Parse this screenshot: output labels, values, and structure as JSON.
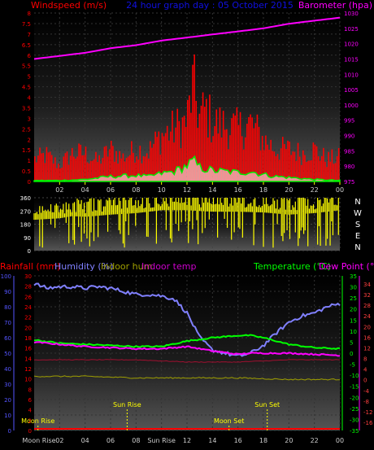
{
  "colors": {
    "windspeed": "#ff0000",
    "barometer": "#ff00ff",
    "title": "#1010e0",
    "direction": "#ffff00",
    "humidity": "#8080ff",
    "rainfall_axis": "#5555ff",
    "temperature": "#00ff00",
    "dewpoint": "#ff00ff",
    "indoor_hum": "#a0a000",
    "indoor_temp": "#cc00cc",
    "event": "#ffff00",
    "tick": "#ffff00"
  },
  "chart_data": [
    {
      "type": "bar",
      "title": "24 hour graph day : 05 October 2015",
      "ylabel": "Windspeed (m/s)",
      "y2label": "Barometer (hpa)",
      "ylim": [
        0,
        8
      ],
      "y2lim": [
        975,
        1030
      ],
      "y_ticks": [
        "0",
        "0.5",
        "1",
        "1.5",
        "2",
        "2.5",
        "3",
        "3.5",
        "4",
        "4.5",
        "5",
        "5.5",
        "6",
        "6.5",
        "7",
        "7.5",
        "8"
      ],
      "y2_ticks": [
        "975",
        "980",
        "985",
        "990",
        "995",
        "1000",
        "1005",
        "1010",
        "1015",
        "1020",
        "1025",
        "1030"
      ],
      "x_ticks": [
        "02",
        "04",
        "06",
        "08",
        "10",
        "12",
        "14",
        "16",
        "18",
        "20",
        "22",
        "00"
      ],
      "series": [
        {
          "name": "Gust",
          "x": [
            0,
            1,
            2,
            3,
            4,
            5,
            6,
            7,
            8,
            9,
            10,
            11,
            12,
            12.5,
            13,
            13.5,
            14,
            15,
            16,
            17,
            18,
            19,
            20,
            21,
            22,
            23,
            24
          ],
          "values": [
            1.1,
            1.3,
            0.8,
            1.4,
            1.4,
            1.0,
            1.6,
            1.2,
            1.6,
            1.5,
            2.3,
            2.6,
            3.0,
            4.8,
            3.2,
            3.6,
            2.9,
            2.8,
            2.6,
            2.9,
            2.1,
            1.6,
            1.6,
            1.4,
            1.6,
            1.1,
            1.2
          ]
        },
        {
          "name": "Average",
          "x": [
            0,
            2,
            4,
            6,
            8,
            9,
            10,
            11,
            12,
            12.5,
            13,
            14,
            15,
            16,
            17,
            18,
            19,
            20,
            22,
            24
          ],
          "values": [
            0.05,
            0.05,
            0.1,
            0.25,
            0.3,
            0.25,
            0.4,
            0.5,
            0.8,
            1.0,
            0.7,
            0.55,
            0.5,
            0.45,
            0.5,
            0.35,
            0.25,
            0.2,
            0.1,
            0.05
          ]
        },
        {
          "name": "Barometer",
          "x": [
            0,
            2,
            4,
            6,
            8,
            10,
            12,
            14,
            16,
            18,
            20,
            22,
            24
          ],
          "values": [
            1015,
            1016,
            1017,
            1018.5,
            1019.5,
            1021,
            1022,
            1023,
            1024,
            1025,
            1026.5,
            1027.5,
            1028.5
          ]
        }
      ]
    },
    {
      "type": "bar",
      "ylim": [
        0,
        360
      ],
      "y_ticks": [
        "0",
        "90",
        "180",
        "270",
        "360"
      ],
      "directions": [
        "N",
        "W",
        "S",
        "E",
        "N"
      ],
      "series": [
        {
          "name": "Wind direction",
          "x": [
            0,
            2,
            3,
            4,
            6,
            8,
            10,
            12,
            14,
            16,
            18,
            20,
            22,
            24
          ],
          "values": [
            235,
            245,
            260,
            255,
            270,
            280,
            300,
            300,
            290,
            290,
            285,
            270,
            280,
            300
          ]
        }
      ]
    },
    {
      "type": "line",
      "labels": {
        "rainfall": "Rainfall (mm)",
        "humidity": "Humidity (%)",
        "indoor_hum": "Indoor hum",
        "indoor_temp": "Indoor temp",
        "temperature": "Temperature (°C)",
        "dewpoint": "Dew Point (°C)"
      },
      "humidity_ticks": [
        "0",
        "10",
        "20",
        "30",
        "40",
        "50",
        "60",
        "70",
        "80",
        "90",
        "100"
      ],
      "rain_ticks": [
        "0",
        "2",
        "4",
        "6",
        "8",
        "10",
        "12",
        "14",
        "16",
        "18",
        "20",
        "22",
        "24",
        "26",
        "28",
        "30"
      ],
      "temp_ticks": [
        "-35",
        "-30",
        "-25",
        "-20",
        "-15",
        "-10",
        "-5",
        "0",
        "5",
        "10",
        "15",
        "20",
        "25",
        "30",
        "35"
      ],
      "dew_ticks": [
        "-16",
        "-12",
        "-8",
        "-4",
        "0",
        "4",
        "8",
        "12",
        "16",
        "20",
        "24",
        "28",
        "32",
        "34"
      ],
      "x_ticks": [
        "Moon Rise",
        "02",
        "04",
        "06",
        "08",
        "Sun Rise",
        "12",
        "14",
        "16",
        "18",
        "20",
        "22",
        "00"
      ],
      "humidity_range": [
        0,
        100
      ],
      "temp_range": [
        -35,
        35
      ],
      "series": [
        {
          "name": "Humidity",
          "x": [
            0,
            1,
            2,
            3,
            4,
            5,
            6,
            7,
            8,
            9,
            10,
            11,
            12,
            13,
            14,
            15,
            16,
            17,
            18,
            19,
            20,
            21,
            22,
            23,
            24
          ],
          "values": [
            95,
            92,
            93,
            93,
            92,
            93,
            92,
            90,
            88,
            88,
            87,
            85,
            76,
            60,
            52,
            50,
            48,
            50,
            55,
            63,
            70,
            74,
            76,
            80,
            82
          ]
        },
        {
          "name": "Temperature",
          "x": [
            0,
            2,
            4,
            6,
            8,
            10,
            12,
            14,
            16,
            17,
            18,
            20,
            22,
            24
          ],
          "values": [
            6,
            4.5,
            4,
            3.5,
            3,
            3,
            5.5,
            7,
            8,
            8,
            7,
            4,
            2.5,
            2
          ]
        },
        {
          "name": "Dew Point",
          "x": [
            0,
            2,
            4,
            6,
            8,
            10,
            12,
            14,
            16,
            17,
            18,
            20,
            22,
            24
          ],
          "values": [
            5,
            4,
            3,
            2.5,
            2,
            2,
            3,
            1,
            -0.5,
            0,
            0,
            0,
            -0.5,
            -1
          ]
        },
        {
          "name": "Indoor temp",
          "x": [
            0,
            4,
            8,
            12,
            16,
            20,
            24
          ],
          "values": [
            -3,
            -3,
            -3,
            -4,
            -4,
            -3,
            -3
          ]
        },
        {
          "name": "Indoor hum",
          "x": [
            0,
            4,
            8,
            12,
            16,
            20,
            24
          ],
          "values": [
            35,
            35,
            34,
            34,
            34,
            33,
            33
          ]
        }
      ],
      "events": [
        {
          "label": "Moon Rise",
          "x": 0.3,
          "y_level": "low"
        },
        {
          "label": "Sun Rise",
          "x": 7.3,
          "y_level": "high"
        },
        {
          "label": "Moon Set",
          "x": 15.3,
          "y_level": "low"
        },
        {
          "label": "Sun Set",
          "x": 18.3,
          "y_level": "high"
        }
      ]
    }
  ]
}
